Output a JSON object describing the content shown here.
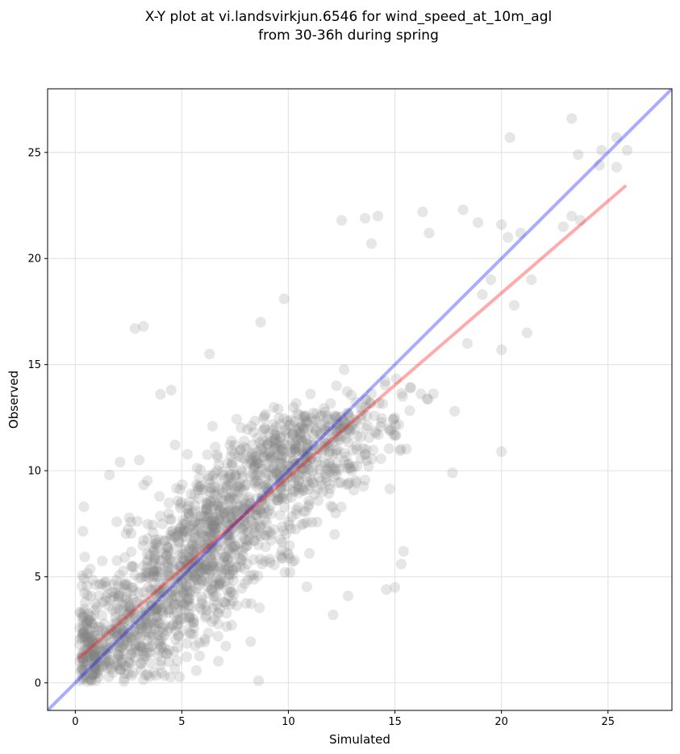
{
  "chart_data": {
    "type": "scatter",
    "title_line1": "X-Y plot at vi.landsvirkjun.6546 for wind_speed_at_10m_agl",
    "title_line2": "from 30-36h during spring",
    "xlabel": "Simulated",
    "ylabel": "Observed",
    "xlim": [
      -1.3,
      28
    ],
    "ylim": [
      -1.3,
      28
    ],
    "xticks": [
      0,
      5,
      10,
      15,
      20,
      25
    ],
    "yticks": [
      0,
      5,
      10,
      15,
      20,
      25
    ],
    "grid": true,
    "point_color": "#808080",
    "point_opacity": 0.2,
    "identity_line": {
      "color": "#0000ff",
      "opacity": 0.33,
      "x": [
        -1.3,
        28
      ],
      "y": [
        -1.3,
        28
      ]
    },
    "fit_line": {
      "color": "#ff0000",
      "opacity": 0.33,
      "x": [
        0.2,
        25.8
      ],
      "y": [
        1.2,
        23.4
      ]
    },
    "point_count": 1800,
    "outliers": [
      [
        2.8,
        16.7
      ],
      [
        3.2,
        16.8
      ],
      [
        6.3,
        15.5
      ],
      [
        4.5,
        13.8
      ],
      [
        4.0,
        13.6
      ],
      [
        9.8,
        18.1
      ],
      [
        8.7,
        17.0
      ],
      [
        12.5,
        21.8
      ],
      [
        13.6,
        21.9
      ],
      [
        14.2,
        22.0
      ],
      [
        13.9,
        20.7
      ],
      [
        16.3,
        22.2
      ],
      [
        16.6,
        21.2
      ],
      [
        18.2,
        22.3
      ],
      [
        18.9,
        21.7
      ],
      [
        20.0,
        21.6
      ],
      [
        20.4,
        25.7
      ],
      [
        20.3,
        21.0
      ],
      [
        20.9,
        21.2
      ],
      [
        23.3,
        26.6
      ],
      [
        23.6,
        24.9
      ],
      [
        24.6,
        24.4
      ],
      [
        24.7,
        25.1
      ],
      [
        25.4,
        25.7
      ],
      [
        25.4,
        24.3
      ],
      [
        25.9,
        25.1
      ],
      [
        22.9,
        21.5
      ],
      [
        23.3,
        22.0
      ],
      [
        23.7,
        21.8
      ],
      [
        20.0,
        15.7
      ],
      [
        20.0,
        10.9
      ],
      [
        17.7,
        9.9
      ],
      [
        17.8,
        12.8
      ],
      [
        15.0,
        4.5
      ],
      [
        14.6,
        4.4
      ],
      [
        15.3,
        5.6
      ],
      [
        15.4,
        6.2
      ],
      [
        12.8,
        4.1
      ],
      [
        12.1,
        3.2
      ],
      [
        8.6,
        0.1
      ],
      [
        0.4,
        8.3
      ],
      [
        2.1,
        10.4
      ],
      [
        1.6,
        9.8
      ],
      [
        3.0,
        10.5
      ],
      [
        21.2,
        16.5
      ],
      [
        20.6,
        17.8
      ],
      [
        21.4,
        19.0
      ],
      [
        19.5,
        19.0
      ],
      [
        18.4,
        16.0
      ],
      [
        19.1,
        18.3
      ]
    ]
  }
}
